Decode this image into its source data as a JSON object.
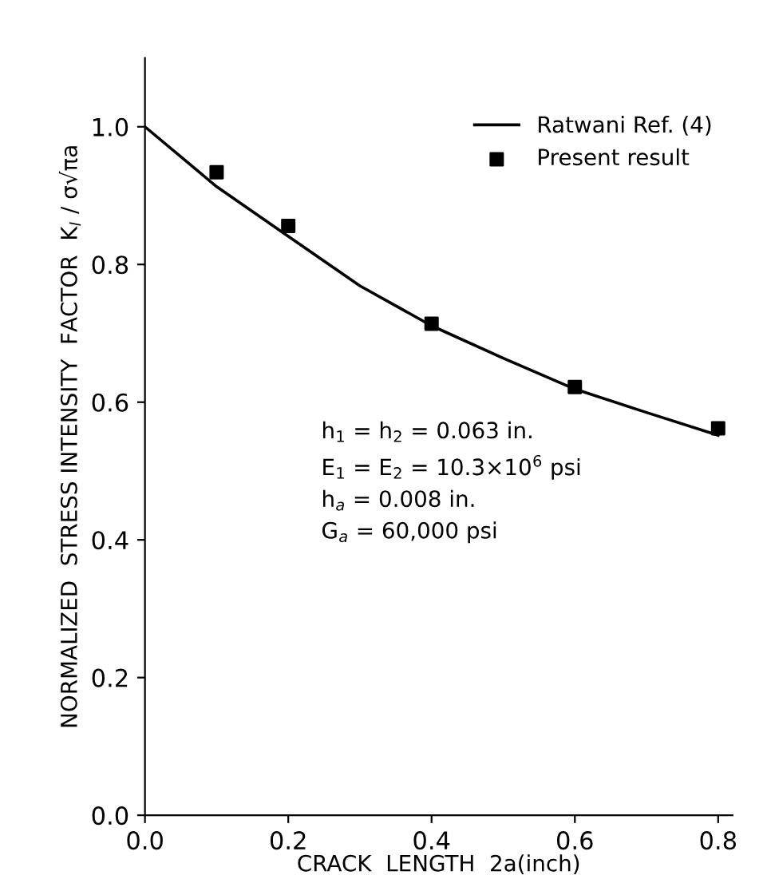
{
  "chart_data": {
    "type": "line",
    "xlabel": "CRACK  LENGTH  2a(inch)",
    "ylabel": "NORMALIZED  STRESS INTENSITY  FACTOR  K$_{I}$ / σ√πa",
    "series": [
      {
        "name": "Ratwani Ref. (4)",
        "color": "#000000",
        "marker": "none",
        "line_style": "solid",
        "x": [
          0.0,
          0.1,
          0.2,
          0.3,
          0.4,
          0.5,
          0.6,
          0.7,
          0.8
        ],
        "values": [
          1.0,
          0.913,
          0.841,
          0.769,
          0.711,
          0.664,
          0.619,
          0.585,
          0.552
        ]
      },
      {
        "name": "Present result",
        "type": "scatter",
        "color": "#000000",
        "marker": "square",
        "x": [
          0.1,
          0.2,
          0.4,
          0.6,
          0.8
        ],
        "values": [
          0.934,
          0.856,
          0.714,
          0.622,
          0.562
        ]
      }
    ],
    "xlim": [
      0,
      0.82
    ],
    "ylim": [
      0,
      1.1
    ],
    "xticks": [
      {
        "value": 0,
        "label": "0.0"
      },
      0.2,
      0.4,
      0.6,
      0.8
    ],
    "yticks": [
      {
        "value": 0,
        "label": "0.0"
      },
      0.2,
      0.4,
      0.6,
      0.8,
      {
        "value": 1,
        "label": "1.0"
      }
    ],
    "grid": false,
    "legend": "top right",
    "annotations": [
      "h$_{1}$ = h$_{2}$ = 0.063 in.\nE$_{1}$ = E$_{2}$ = 10.3×10$^{6}$ psi\nh$_{a}$ = 0.008 in.\nG$_{a}$ = 60,000 psi"
    ]
  }
}
